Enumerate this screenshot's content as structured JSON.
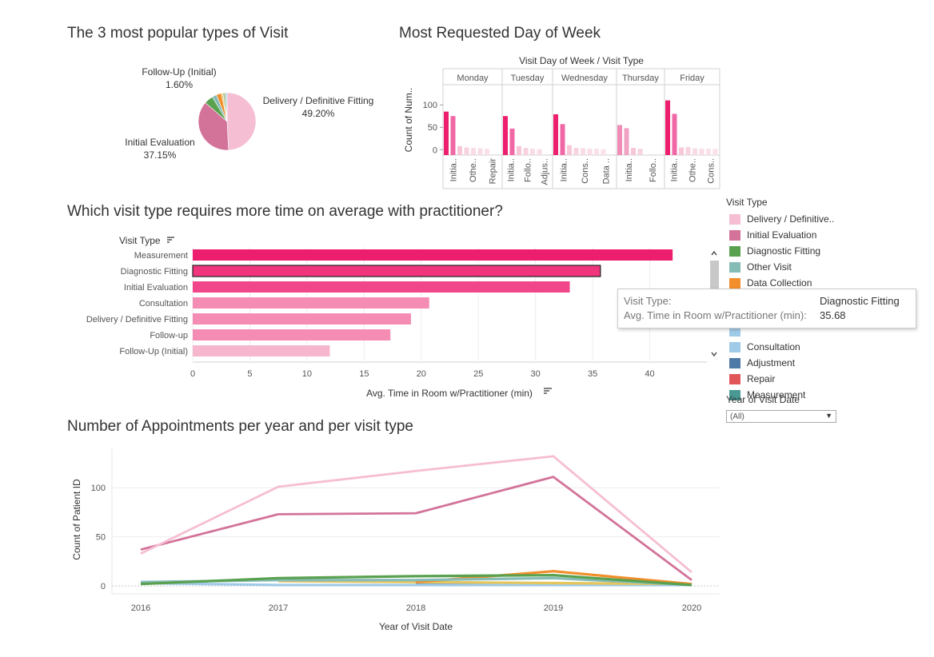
{
  "titles": {
    "pie": "The 3 most popular types of Visit",
    "day": "Most Requested Day of Week",
    "bar": "Which visit type requires more time on average with practitioner?",
    "line": "Number of Appointments per year and per visit type"
  },
  "colors": {
    "Delivery / Definitive Fitting": "#f6bed3",
    "Initial Evaluation": "#d3739a",
    "Diagnostic Fitting": "#59a14f",
    "Other Visit": "#86bcb6",
    "Data Collection": "#f28e2b",
    "Follow-Up (Initial)": "#b8c99a",
    "Follow-up": "#e6c65c",
    "Consultation": "#a0cbe8",
    "Adjustment": "#4e79a7",
    "Repair": "#e15759",
    "Measurement": "#499894"
  },
  "legend": {
    "title": "Visit Type",
    "items": [
      {
        "label": "Delivery / Definitive..",
        "color": "#f6bed3"
      },
      {
        "label": "Initial Evaluation",
        "color": "#d3739a"
      },
      {
        "label": "Diagnostic Fitting",
        "color": "#59a14f"
      },
      {
        "label": "Other Visit",
        "color": "#86bcb6"
      },
      {
        "label": "Data Collection",
        "color": "#f28e2b"
      },
      {
        "label": "",
        "color": "#ffffff"
      },
      {
        "label": "",
        "color": "#ffffff"
      },
      {
        "label": "",
        "color": "#a0cbe8"
      },
      {
        "label": "Consultation",
        "color": "#a0cbe8"
      },
      {
        "label": "Adjustment",
        "color": "#4e79a7"
      },
      {
        "label": "Repair",
        "color": "#e15759"
      },
      {
        "label": "Measurement",
        "color": "#499894"
      }
    ]
  },
  "filter": {
    "label": "Year of Visit Date",
    "value": "(All)"
  },
  "tooltip": {
    "k1": "Visit Type:",
    "v1": "Diagnostic Fitting",
    "k2": "Avg. Time in Room w/Practitioner (min):",
    "v2": "35.68"
  },
  "chart_data": [
    {
      "type": "pie",
      "title": "The 3 most popular types of Visit",
      "slices": [
        {
          "label": "Delivery / Definitive Fitting",
          "value": 49.2,
          "text": "49.20%",
          "color": "#f6bed3"
        },
        {
          "label": "Initial Evaluation",
          "value": 37.15,
          "text": "37.15%",
          "color": "#d3739a"
        },
        {
          "label": "Diagnostic Fitting",
          "value": 5.0,
          "color": "#59a14f"
        },
        {
          "label": "Other Visit",
          "value": 2.6,
          "color": "#86bcb6"
        },
        {
          "label": "Data Collection",
          "value": 2.8,
          "color": "#f28e2b"
        },
        {
          "label": "Follow-up",
          "value": 0.8,
          "color": "#e6c65c"
        },
        {
          "label": "Follow-Up (Initial)",
          "value": 1.6,
          "text": "1.60%",
          "color": "#b8c99a"
        },
        {
          "label": "Consultation",
          "value": 0.85,
          "color": "#a0cbe8"
        }
      ]
    },
    {
      "type": "bar",
      "title": "Most Requested Day of Week",
      "header": "Visit Day of Week  /  Visit Type",
      "ylabel": "Count of Num..",
      "yticks": [
        0,
        50,
        100
      ],
      "ylim": [
        -12,
        145
      ],
      "panels": [
        {
          "day": "Monday",
          "values": [
            85,
            75,
            8,
            5,
            4,
            3,
            2
          ],
          "labels": [
            "Initia..",
            "Othe..",
            "Repair"
          ]
        },
        {
          "day": "Tuesday",
          "values": [
            75,
            47,
            8,
            4,
            2,
            1
          ],
          "labels": [
            "Initia..",
            "Follo..",
            "Adjus.."
          ]
        },
        {
          "day": "Wednesday",
          "values": [
            79,
            57,
            10,
            4,
            3,
            2,
            2,
            1
          ],
          "labels": [
            "Initia..",
            "Cons..",
            "Data .."
          ]
        },
        {
          "day": "Thursday",
          "values": [
            55,
            48,
            4,
            2
          ],
          "labels": [
            "Initia..",
            "Follo.."
          ]
        },
        {
          "day": "Friday",
          "values": [
            110,
            80,
            5,
            6,
            3,
            2,
            2,
            2
          ],
          "labels": [
            "Initia..",
            "Othe..",
            "Cons.."
          ]
        }
      ]
    },
    {
      "type": "bar",
      "orientation": "horizontal",
      "title": "Which visit type requires more time on average with practitioner?",
      "header": "Visit Type",
      "xlabel": "Avg. Time in Room w/Practitioner (min)",
      "xlim": [
        0,
        45
      ],
      "xticks": [
        0,
        5,
        10,
        15,
        20,
        25,
        30,
        35,
        40
      ],
      "categories": [
        "Measurement",
        "Diagnostic Fitting",
        "Initial Evaluation",
        "Consultation",
        "Delivery / Definitive Fitting",
        "Follow-up",
        "Follow-Up (Initial)"
      ],
      "values": [
        42.0,
        35.68,
        33.0,
        20.7,
        19.1,
        17.3,
        12.0
      ],
      "colors": [
        "#ee1e6f",
        "#f0357c",
        "#f2468a",
        "#f48cb4",
        "#f48cb4",
        "#f48cb4",
        "#f6b6cd"
      ],
      "highlighted": "Diagnostic Fitting"
    },
    {
      "type": "line",
      "title": "Number of Appointments per year and per visit type",
      "xlabel": "Year of Visit Date",
      "ylabel": "Count of Patient ID",
      "x": [
        2016,
        2017,
        2018,
        2019,
        2020
      ],
      "yticks": [
        0,
        50,
        100
      ],
      "ylim": [
        -8,
        140
      ],
      "series": [
        {
          "name": "Delivery / Definitive Fitting",
          "color": "#f6bed3",
          "values": [
            33,
            101,
            117,
            132,
            14
          ]
        },
        {
          "name": "Initial Evaluation",
          "color": "#d3739a",
          "values": [
            37,
            73,
            74,
            111,
            6
          ]
        },
        {
          "name": "Diagnostic Fitting",
          "color": "#59a14f",
          "values": [
            2,
            8,
            10,
            11,
            1
          ]
        },
        {
          "name": "Other Visit",
          "color": "#86bcb6",
          "values": [
            4,
            6,
            6,
            8,
            1
          ]
        },
        {
          "name": "Data Collection",
          "color": "#f28e2b",
          "values": [
            null,
            null,
            4,
            15,
            2
          ]
        },
        {
          "name": "Follow-up",
          "color": "#e6c65c",
          "values": [
            null,
            5,
            4,
            3,
            2
          ]
        },
        {
          "name": "Consultation",
          "color": "#a0cbe8",
          "values": [
            3,
            1,
            1,
            1,
            1
          ]
        },
        {
          "name": "Adjustment",
          "color": "#4e79a7",
          "values": [
            null,
            null,
            2,
            2,
            null
          ]
        },
        {
          "name": "Measurement",
          "color": "#499894",
          "values": [
            1,
            null,
            null,
            null,
            1
          ]
        }
      ]
    }
  ]
}
